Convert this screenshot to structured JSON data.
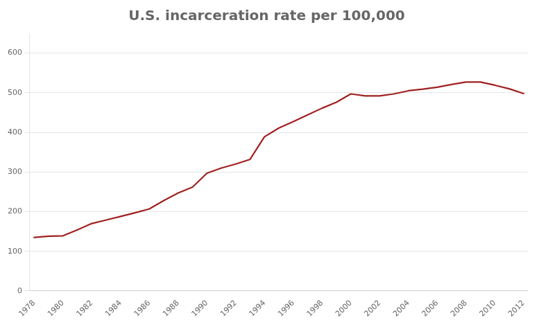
{
  "chart_data": {
    "type": "line",
    "title": "U.S. incarceration rate per 100,000",
    "x": [
      1978,
      1979,
      1980,
      1981,
      1982,
      1983,
      1984,
      1985,
      1986,
      1987,
      1988,
      1989,
      1990,
      1991,
      1992,
      1993,
      1994,
      1995,
      1996,
      1997,
      1998,
      1999,
      2000,
      2001,
      2002,
      2003,
      2004,
      2005,
      2006,
      2007,
      2008,
      2009,
      2010,
      2011,
      2012
    ],
    "values": [
      135,
      138,
      139,
      154,
      170,
      179,
      188,
      197,
      207,
      228,
      247,
      262,
      297,
      310,
      320,
      332,
      389,
      411,
      427,
      444,
      461,
      476,
      497,
      492,
      492,
      497,
      505,
      509,
      514,
      521,
      527,
      527,
      519,
      510,
      498
    ],
    "color": "#A02020",
    "xlim": [
      1977.7,
      2012.3
    ],
    "xticks": [
      1978,
      1980,
      1982,
      1984,
      1986,
      1988,
      1990,
      1992,
      1994,
      1996,
      1998,
      2000,
      2002,
      2004,
      2006,
      2008,
      2010,
      2012
    ],
    "ylim": [
      0,
      650
    ],
    "yticks": [
      0,
      100,
      200,
      300,
      400,
      500,
      600
    ],
    "grid": "y"
  }
}
